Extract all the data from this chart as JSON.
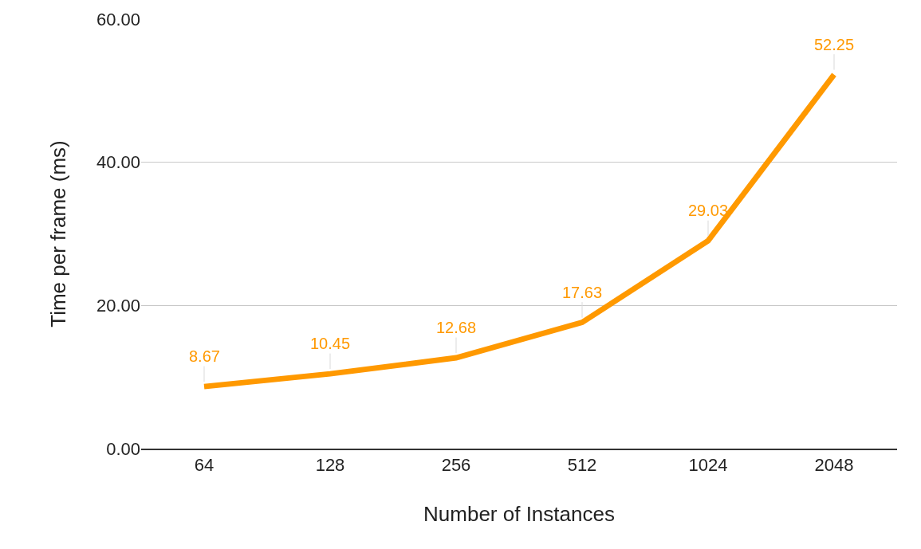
{
  "chart_data": {
    "type": "line",
    "xlabel": "Number of Instances",
    "ylabel": "Time per frame (ms)",
    "categories": [
      "64",
      "128",
      "256",
      "512",
      "1024",
      "2048"
    ],
    "series": [
      {
        "color": "#ff9900",
        "values": [
          8.67,
          10.45,
          12.68,
          17.63,
          29.03,
          52.25
        ]
      }
    ],
    "ylim": [
      0,
      60
    ],
    "yticks": [
      {
        "value": 0,
        "label": "0.00"
      },
      {
        "value": 20,
        "label": "20.00"
      },
      {
        "value": 40,
        "label": "40.00"
      },
      {
        "value": 60,
        "label": "60.00"
      }
    ],
    "grid": "y",
    "marker": "none",
    "line_style": "solid",
    "data_labels": true
  }
}
